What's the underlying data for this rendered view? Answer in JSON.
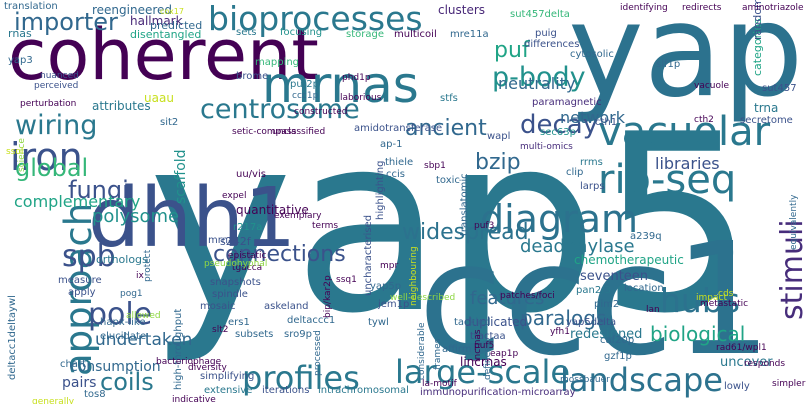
{
  "palette": {
    "purple": "#440154",
    "indigo": "#3b528b",
    "blue": "#31688e",
    "teal": "#21918c",
    "green": "#35b779",
    "lime": "#8fd744",
    "yellow": "#c8e020"
  },
  "words": [
    {
      "text": "yap5",
      "color": "#2a788e"
    },
    {
      "text": "ccc1",
      "color": "#2c728e"
    },
    {
      "text": "yap",
      "color": "#2c728e"
    },
    {
      "text": "coherent",
      "color": "#440154"
    },
    {
      "text": "dhh1",
      "color": "#3b528b"
    },
    {
      "text": "mrnas",
      "color": "#2a788e"
    },
    {
      "text": "bioprocesses",
      "color": "#2a788e"
    },
    {
      "text": "vacuolar",
      "color": "#2a788e"
    },
    {
      "text": "rip-seq",
      "color": "#2a788e"
    },
    {
      "text": "iron",
      "color": "#3b528b"
    },
    {
      "text": "diagram",
      "color": "#2c728e"
    },
    {
      "text": "approach",
      "color": "#2a788e"
    },
    {
      "text": "profiles",
      "color": "#2a788e"
    },
    {
      "text": "large-scale",
      "color": "#2a788e"
    },
    {
      "text": "landscape",
      "color": "#2c728e"
    },
    {
      "text": "hubs",
      "color": "#2c728e"
    },
    {
      "text": "stimuli",
      "color": "#472d7b"
    },
    {
      "text": "centrosome",
      "color": "#2a788e"
    },
    {
      "text": "importer",
      "color": "#31688e"
    },
    {
      "text": "wiring",
      "color": "#2a788e"
    },
    {
      "text": "global",
      "color": "#35b779"
    },
    {
      "text": "pole",
      "color": "#3b528b"
    },
    {
      "text": "spb",
      "color": "#3b528b"
    },
    {
      "text": "decay",
      "color": "#3b528b"
    },
    {
      "text": "p-body",
      "color": "#21918c"
    },
    {
      "text": "puf",
      "color": "#20a486"
    },
    {
      "text": "connections",
      "color": "#3b528b"
    },
    {
      "text": "widespread",
      "color": "#2c728e"
    },
    {
      "text": "fungi",
      "color": "#3b528b"
    },
    {
      "text": "bzip",
      "color": "#31688e"
    },
    {
      "text": "ancient",
      "color": "#31688e"
    },
    {
      "text": "coils",
      "color": "#2a788e"
    },
    {
      "text": "paralogs",
      "color": "#31688e"
    },
    {
      "text": "biological",
      "color": "#20a486"
    },
    {
      "text": "libraries",
      "color": "#3b528b"
    },
    {
      "text": "deadenylase",
      "color": "#2a788e"
    },
    {
      "text": "network",
      "color": "#31688e"
    },
    {
      "text": "undertaken",
      "color": "#31688e"
    },
    {
      "text": "features",
      "color": "#31688e"
    },
    {
      "text": "polysome",
      "color": "#21918c"
    },
    {
      "text": "complementary",
      "color": "#20a486"
    },
    {
      "text": "neutrality",
      "color": "#31688e"
    },
    {
      "text": "hallmark",
      "color": "#482878"
    },
    {
      "text": "scaffold",
      "color": "#21918c"
    },
    {
      "text": "quantitative",
      "color": "#440154"
    },
    {
      "text": "attributes",
      "color": "#2a788e"
    },
    {
      "text": "consumption",
      "color": "#31688e"
    },
    {
      "text": "pairs",
      "color": "#3b528b"
    },
    {
      "text": "uncover",
      "color": "#2a788e"
    },
    {
      "text": "redesigned",
      "color": "#2a788e"
    },
    {
      "text": "lincrnas",
      "color": "#440154"
    },
    {
      "text": "duplicated",
      "color": "#3b528b"
    },
    {
      "text": "seventeen",
      "color": "#3b528b"
    },
    {
      "text": "chemotherapeutic",
      "color": "#20a486"
    },
    {
      "text": "clusters",
      "color": "#482878"
    },
    {
      "text": "reengineered",
      "color": "#31688e"
    },
    {
      "text": "translation",
      "color": "#31688e"
    },
    {
      "text": "rnas",
      "color": "#2a788e"
    },
    {
      "text": "yap3",
      "color": "#31688e"
    },
    {
      "text": "predicted",
      "color": "#31688e"
    },
    {
      "text": "disentangled",
      "color": "#20a486"
    },
    {
      "text": "sets",
      "color": "#2a788e"
    },
    {
      "text": "focusing",
      "color": "#21918c"
    },
    {
      "text": "storage",
      "color": "#35b779"
    },
    {
      "text": "multicoil",
      "color": "#440154"
    },
    {
      "text": "mre11a",
      "color": "#31688e"
    },
    {
      "text": "sut457delta",
      "color": "#35b779"
    },
    {
      "text": "differences",
      "color": "#3b528b"
    },
    {
      "text": "puig",
      "color": "#3b528b"
    },
    {
      "text": "cytosolic",
      "color": "#31688e"
    },
    {
      "text": "categories",
      "color": "#20a486"
    },
    {
      "text": "random",
      "color": "#3b528b"
    },
    {
      "text": "sut457",
      "color": "#3b528b"
    },
    {
      "text": "trna",
      "color": "#2a788e"
    },
    {
      "text": "secretome",
      "color": "#3b528b"
    },
    {
      "text": "slf1p",
      "color": "#31688e"
    },
    {
      "text": "aminotriazole",
      "color": "#440154"
    },
    {
      "text": "mapping",
      "color": "#35b779"
    },
    {
      "text": "brome",
      "color": "#3b528b"
    },
    {
      "text": "puf2p",
      "color": "#2a788e"
    },
    {
      "text": "ccc1p",
      "color": "#31688e"
    },
    {
      "text": "stfs",
      "color": "#2a788e"
    },
    {
      "text": "nuanced",
      "color": "#3b528b"
    },
    {
      "text": "perceived",
      "color": "#3b528b"
    },
    {
      "text": "paramagnetic",
      "color": "#472d7b"
    },
    {
      "text": "sec63p",
      "color": "#21918c"
    },
    {
      "text": "cth1",
      "color": "#3b528b"
    },
    {
      "text": "wapl",
      "color": "#3b528b"
    },
    {
      "text": "amidotransferase",
      "color": "#3b528b"
    },
    {
      "text": "sit2",
      "color": "#31688e"
    },
    {
      "text": "ap-1",
      "color": "#31688e"
    },
    {
      "text": "multi-omics",
      "color": "#472d7b"
    },
    {
      "text": "rrms",
      "color": "#2a788e"
    },
    {
      "text": "clip",
      "color": "#31688e"
    },
    {
      "text": "ccis",
      "color": "#31688e"
    },
    {
      "text": "thiele",
      "color": "#31688e"
    },
    {
      "text": "toxic",
      "color": "#31688e"
    },
    {
      "text": "larps",
      "color": "#3b528b"
    },
    {
      "text": "uu/vis",
      "color": "#440154"
    },
    {
      "text": "s242f",
      "color": "#3b528b"
    },
    {
      "text": "r217a",
      "color": "#21918c"
    },
    {
      "text": "mrna",
      "color": "#3b528b"
    },
    {
      "text": "orthologs",
      "color": "#2a788e"
    },
    {
      "text": "snapshots",
      "color": "#3b528b"
    },
    {
      "text": "measure",
      "color": "#3b528b"
    },
    {
      "text": "apply",
      "color": "#3b528b"
    },
    {
      "text": "spindle",
      "color": "#3b528b"
    },
    {
      "text": "yap5p",
      "color": "#31688e"
    },
    {
      "text": "jem1p",
      "color": "#3b528b"
    },
    {
      "text": "uncharacterised",
      "color": "#3b528b"
    },
    {
      "text": "highlighting",
      "color": "#3b528b"
    },
    {
      "text": "translatomic",
      "color": "#31688e"
    },
    {
      "text": "location",
      "color": "#31688e"
    },
    {
      "text": "askeland",
      "color": "#3b528b"
    },
    {
      "text": "hapx-like",
      "color": "#31688e"
    },
    {
      "text": "elucidate",
      "color": "#31688e"
    },
    {
      "text": "mosaic",
      "color": "#3b528b"
    },
    {
      "text": "ers1",
      "color": "#31688e"
    },
    {
      "text": "subsets",
      "color": "#31688e"
    },
    {
      "text": "deltaccc1",
      "color": "#31688e"
    },
    {
      "text": "sro9p",
      "color": "#31688e"
    },
    {
      "text": "tywl",
      "color": "#31688e"
    },
    {
      "text": "pan2/3",
      "color": "#2a788e"
    },
    {
      "text": "pim2",
      "color": "#31688e"
    },
    {
      "text": "a239q",
      "color": "#31688e"
    },
    {
      "text": "yap5delta",
      "color": "#3b528b"
    },
    {
      "text": "tackled",
      "color": "#31688e"
    },
    {
      "text": "ttactaa",
      "color": "#3b528b"
    },
    {
      "text": "affirm",
      "color": "#31688e"
    },
    {
      "text": "gzf1p",
      "color": "#31688e"
    },
    {
      "text": "caf20p",
      "color": "#31688e"
    },
    {
      "text": "rad61/wpl1",
      "color": "#440154"
    },
    {
      "text": "lowly",
      "color": "#3b528b"
    },
    {
      "text": "mossbauer",
      "color": "#31688e"
    },
    {
      "text": "simplifying",
      "color": "#3b528b"
    },
    {
      "text": "extensive",
      "color": "#2a788e"
    },
    {
      "text": "iterations",
      "color": "#3b528b"
    },
    {
      "text": "intrachromosomal",
      "color": "#2a788e"
    },
    {
      "text": "immunopurification-microarray",
      "color": "#472d7b"
    },
    {
      "text": "tos8",
      "color": "#31688e"
    },
    {
      "text": "chart",
      "color": "#31688e"
    },
    {
      "text": "considerable",
      "color": "#31688e"
    },
    {
      "text": "frames",
      "color": "#31688e"
    },
    {
      "text": "defines",
      "color": "#31688e"
    },
    {
      "text": "processed",
      "color": "#31688e"
    },
    {
      "text": "deltacc1deltaywl",
      "color": "#31688e"
    },
    {
      "text": "high-throughput",
      "color": "#31688e"
    },
    {
      "text": "equivalently",
      "color": "#31688e"
    },
    {
      "text": "pog1",
      "color": "#31688e"
    },
    {
      "text": "protect",
      "color": "#31688e"
    },
    {
      "text": "exemplary",
      "color": "#440154"
    },
    {
      "text": "setic-compass",
      "color": "#440154"
    },
    {
      "text": "unclassified",
      "color": "#440154"
    },
    {
      "text": "constructed",
      "color": "#440154"
    },
    {
      "text": "laborious",
      "color": "#440154"
    },
    {
      "text": "vacuole",
      "color": "#440154"
    },
    {
      "text": "indicative",
      "color": "#440154"
    },
    {
      "text": "diversity",
      "color": "#440154"
    },
    {
      "text": "responds",
      "color": "#440154"
    },
    {
      "text": "simpler",
      "color": "#440154"
    },
    {
      "text": "metastatic",
      "color": "#440154"
    },
    {
      "text": "identifying",
      "color": "#440154"
    },
    {
      "text": "redirects",
      "color": "#440154"
    },
    {
      "text": "perturbation",
      "color": "#440154"
    },
    {
      "text": "phd1p",
      "color": "#440154"
    },
    {
      "text": "puf3",
      "color": "#440154"
    },
    {
      "text": "puf5",
      "color": "#440154"
    },
    {
      "text": "eap1p",
      "color": "#440154"
    },
    {
      "text": "ssq1",
      "color": "#440154"
    },
    {
      "text": "yfh1",
      "color": "#440154"
    },
    {
      "text": "slt2",
      "color": "#440154"
    },
    {
      "text": "mpr",
      "color": "#440154"
    },
    {
      "text": "la-motif",
      "color": "#440154"
    },
    {
      "text": "bacteriophage",
      "color": "#440154"
    },
    {
      "text": "epistatic",
      "color": "#440154"
    },
    {
      "text": "terms",
      "color": "#440154"
    },
    {
      "text": "expel",
      "color": "#440154"
    },
    {
      "text": "tgacca",
      "color": "#440154"
    },
    {
      "text": "sbp1",
      "color": "#440154"
    },
    {
      "text": "cth2",
      "color": "#440154"
    },
    {
      "text": "uaau",
      "color": "#c8e020"
    },
    {
      "text": "ix",
      "color": "#440154"
    },
    {
      "text": "cox17",
      "color": "#c8e020"
    },
    {
      "text": "bip/kar2p",
      "color": "#440154"
    },
    {
      "text": "well-described",
      "color": "#8fd744"
    },
    {
      "text": "lncrnas",
      "color": "#440154"
    },
    {
      "text": "neighbouring",
      "color": "#c8e020"
    },
    {
      "text": "patches/foci",
      "color": "#440154"
    },
    {
      "text": "impact",
      "color": "#c8e020"
    },
    {
      "text": "allowed",
      "color": "#8fd744"
    },
    {
      "text": "generally",
      "color": "#c8e020"
    },
    {
      "text": "science",
      "color": "#8fd744"
    },
    {
      "text": "lan",
      "color": "#440154"
    },
    {
      "text": "cds",
      "color": "#c8e020"
    },
    {
      "text": "pseudohyphal",
      "color": "#8fd744"
    },
    {
      "text": "ssol",
      "color": "#c8e020"
    }
  ]
}
